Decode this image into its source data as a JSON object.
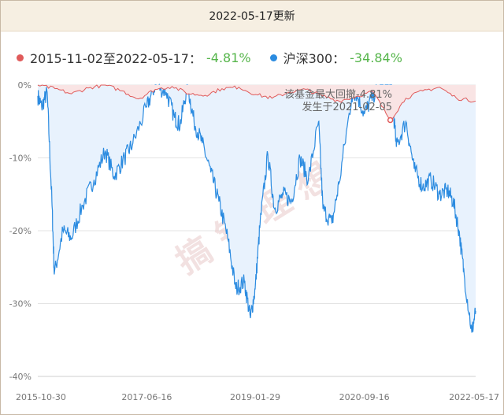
{
  "header": {
    "title": "2022-05-17更新"
  },
  "legend": [
    {
      "name": "2015-11-02至2022-05-17：",
      "value": "-4.81%",
      "color": "#e05a5a"
    },
    {
      "name": "沪深300：",
      "value": "-34.84%",
      "color": "#2b8be0"
    }
  ],
  "annotation": {
    "line1": "该基金最大回撤-4.81%",
    "line2": "发生于2021-02-05"
  },
  "watermark": "搞 钱 理 想",
  "colors": {
    "fund": "#e05a5a",
    "index": "#2b8be0",
    "positive": "#55b54a",
    "fill_index": "#e8f2fd",
    "fill_fund": "#f9e4e4"
  },
  "chart_data": {
    "type": "area",
    "title": "",
    "xlabel": "",
    "ylabel": "",
    "ylim": [
      -40,
      0
    ],
    "yticks": [
      "0%",
      "-10%",
      "-20%",
      "-30%",
      "-40%"
    ],
    "xticks": [
      "2015-10-30",
      "2017-06-16",
      "2019-01-29",
      "2020-09-16",
      "2022-05-17"
    ],
    "grid": true,
    "legend_position": "top",
    "series": [
      {
        "name": "2015-11-02至2022-05-17：",
        "x": [
          "2015-10-30",
          "2016-02-01",
          "2016-05-01",
          "2016-08-01",
          "2016-11-01",
          "2017-02-01",
          "2017-05-01",
          "2017-08-01",
          "2017-11-01",
          "2018-02-01",
          "2018-05-01",
          "2018-08-01",
          "2018-11-01",
          "2019-02-01",
          "2019-05-01",
          "2019-08-01",
          "2019-11-01",
          "2020-02-01",
          "2020-05-01",
          "2020-08-01",
          "2020-11-01",
          "2021-02-05",
          "2021-05-01",
          "2021-08-01",
          "2021-11-01",
          "2022-02-01",
          "2022-05-17"
        ],
        "values": [
          0,
          -0.5,
          -1.2,
          -0.4,
          0,
          -0.8,
          -1.9,
          -0.6,
          -0.2,
          -1.2,
          -1.4,
          -0.5,
          -0.3,
          -1.3,
          -1.8,
          -1.0,
          -0.6,
          -1.5,
          -2.2,
          -1.6,
          -0.9,
          -4.81,
          -1.8,
          -0.8,
          -0.3,
          -1.8,
          -2.2
        ]
      },
      {
        "name": "沪深300：",
        "x": [
          "2015-10-30",
          "2015-11-20",
          "2015-12-20",
          "2016-01-15",
          "2016-01-28",
          "2016-03-15",
          "2016-05-01",
          "2016-07-01",
          "2016-09-01",
          "2016-11-01",
          "2016-12-20",
          "2017-02-15",
          "2017-04-01",
          "2017-06-16",
          "2017-08-01",
          "2017-10-01",
          "2017-11-15",
          "2017-12-15",
          "2018-01-24",
          "2018-03-01",
          "2018-04-15",
          "2018-06-01",
          "2018-07-15",
          "2018-09-01",
          "2018-10-15",
          "2018-12-01",
          "2019-01-03",
          "2019-01-29",
          "2019-02-25",
          "2019-04-08",
          "2019-05-15",
          "2019-07-01",
          "2019-08-15",
          "2019-10-01",
          "2019-11-15",
          "2020-01-10",
          "2020-02-03",
          "2020-03-23",
          "2020-05-01",
          "2020-07-10",
          "2020-08-01",
          "2020-09-16",
          "2020-11-01",
          "2020-12-15",
          "2021-02-10",
          "2021-03-10",
          "2021-05-01",
          "2021-06-15",
          "2021-08-01",
          "2021-09-15",
          "2021-11-01",
          "2021-12-15",
          "2022-01-15",
          "2022-02-15",
          "2022-03-15",
          "2022-04-26",
          "2022-05-17"
        ],
        "values": [
          -1.5,
          -3.0,
          -1.0,
          -16.0,
          -26.0,
          -20.0,
          -21.0,
          -16.5,
          -13.0,
          -9.0,
          -12.5,
          -10.0,
          -8.0,
          -3.0,
          0.0,
          -1.0,
          -4.5,
          -5.5,
          0.0,
          -5.0,
          -8.0,
          -12.0,
          -16.0,
          -21.0,
          -28.0,
          -27.0,
          -32.0,
          -28.0,
          -19.0,
          -9.5,
          -17.0,
          -15.0,
          -16.0,
          -10.0,
          -13.0,
          -5.0,
          -17.0,
          -19.0,
          -13.5,
          -1.5,
          -1.0,
          -4.0,
          -1.5,
          0.0,
          0.0,
          -8.5,
          -5.0,
          -11.5,
          -14.0,
          -13.0,
          -15.0,
          -14.5,
          -16.0,
          -20.0,
          -26.0,
          -34.0,
          -31.0
        ]
      }
    ]
  }
}
